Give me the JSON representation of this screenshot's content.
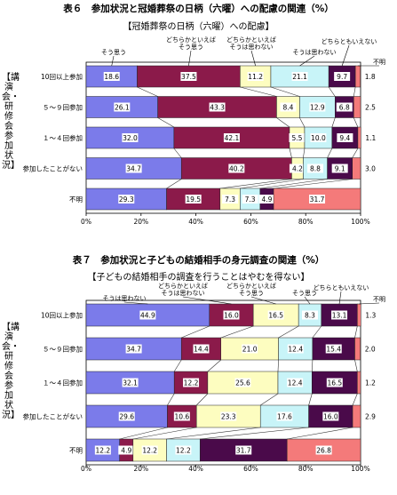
{
  "chart_data": [
    {
      "type": "bar",
      "stacked": true,
      "orientation": "horizontal",
      "title": "表６　参加状況と冠婚葬祭の日柄（六曜）への配慮の関連（%）",
      "subtitle": "【冠婚葬祭の日柄（六曜）への配慮】",
      "ylabel": "【講演会・研修会参加状況】",
      "categories": [
        "10回以上参加",
        "５～９回参加",
        "１～４回参加",
        "参加したことがない",
        "不明"
      ],
      "xlim": [
        0,
        100
      ],
      "xticks": [
        "0%",
        "20%",
        "40%",
        "60%",
        "80%",
        "100%"
      ],
      "series": [
        {
          "name": "そう思う",
          "color": "#7b7bea",
          "values": [
            18.6,
            26.1,
            32.0,
            34.7,
            29.3
          ]
        },
        {
          "name": "どちらかといえば そう思う",
          "color": "#8b1a4a",
          "values": [
            37.5,
            43.3,
            42.1,
            40.2,
            19.5
          ]
        },
        {
          "name": "どちらかといえば そうは思わない",
          "color": "#fdfdc0",
          "values": [
            11.2,
            8.4,
            5.5,
            4.2,
            7.3
          ]
        },
        {
          "name": "そうは思わない",
          "color": "#c8f4f8",
          "values": [
            21.1,
            12.9,
            10.0,
            8.8,
            7.3
          ]
        },
        {
          "name": "どちらともいえない",
          "color": "#4a0a4a",
          "values": [
            9.7,
            6.8,
            9.4,
            9.1,
            4.9
          ]
        },
        {
          "name": "不明",
          "color": "#f47a7a",
          "values": [
            1.8,
            2.5,
            1.1,
            3.0,
            31.7
          ]
        }
      ]
    },
    {
      "type": "bar",
      "stacked": true,
      "orientation": "horizontal",
      "title": "表７　参加状況と子どもの結婚相手の身元調査の関連（%）",
      "subtitle": "【子どもの結婚相手の調査を行うことはやむを得ない】",
      "ylabel": "【講演会・研修会参加状況】",
      "categories": [
        "10回以上参加",
        "５～９回参加",
        "１～４回参加",
        "参加したことがない",
        "不明"
      ],
      "xlim": [
        0,
        100
      ],
      "xticks": [
        "0%",
        "20%",
        "40%",
        "60%",
        "80%",
        "100%"
      ],
      "series": [
        {
          "name": "そうは思わない",
          "color": "#7b7bea",
          "values": [
            44.9,
            34.7,
            32.1,
            29.6,
            12.2
          ]
        },
        {
          "name": "どちらかといえば そうは思わない",
          "color": "#8b1a4a",
          "values": [
            16.0,
            14.4,
            12.2,
            10.6,
            4.9
          ]
        },
        {
          "name": "どちらかといえば そう思う",
          "color": "#fdfdc0",
          "values": [
            16.5,
            21.0,
            25.6,
            23.3,
            12.2
          ]
        },
        {
          "name": "そう思う",
          "color": "#c8f4f8",
          "values": [
            8.3,
            12.4,
            12.4,
            17.6,
            12.2
          ]
        },
        {
          "name": "どちらともいえない",
          "color": "#4a0a4a",
          "values": [
            13.1,
            15.4,
            16.5,
            16.0,
            31.7
          ]
        },
        {
          "name": "不明",
          "color": "#f47a7a",
          "values": [
            1.3,
            2.0,
            1.2,
            2.9,
            26.8
          ]
        }
      ]
    }
  ]
}
